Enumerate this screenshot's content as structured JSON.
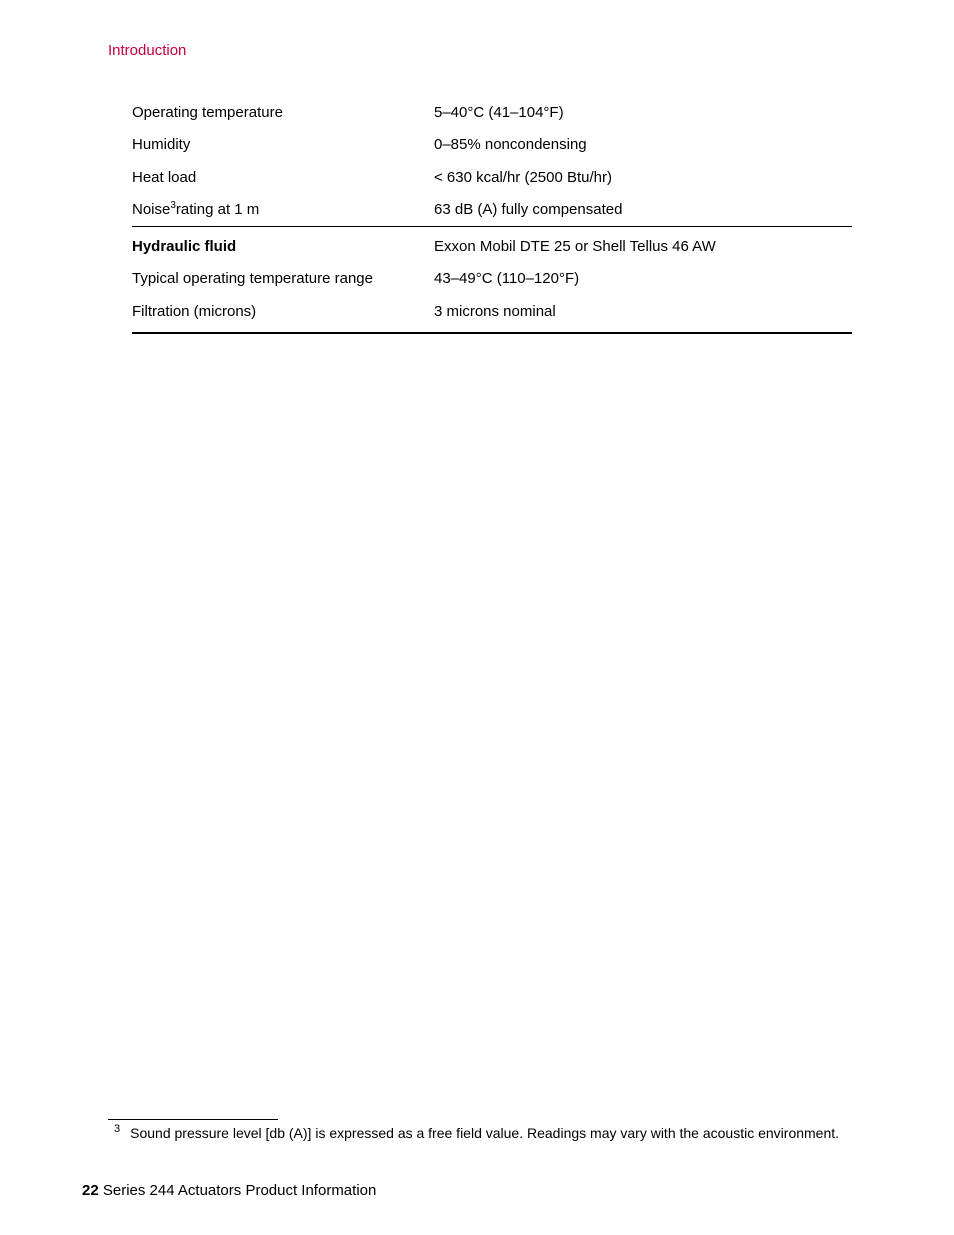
{
  "header": {
    "section": "Introduction"
  },
  "specs": {
    "rows": [
      {
        "label": "Operating temperature",
        "value": "5–40°C (41–104°F)",
        "bold": false,
        "dividerTop": false,
        "dividerBottom": false,
        "sup": ""
      },
      {
        "label": "Humidity",
        "value": "0–85% noncondensing",
        "bold": false,
        "dividerTop": false,
        "dividerBottom": false,
        "sup": ""
      },
      {
        "label": "Heat load",
        "value": "< 630 kcal/hr (2500 Btu/hr)",
        "bold": false,
        "dividerTop": false,
        "dividerBottom": false,
        "sup": ""
      },
      {
        "label": "Noise",
        "labelAfterSup": "rating at 1 m",
        "sup": "3",
        "value": "63 dB (A) fully compensated",
        "bold": false,
        "dividerTop": false,
        "dividerBottom": false
      },
      {
        "label": "Hydraulic fluid",
        "value": "Exxon Mobil DTE 25 or Shell Tellus 46 AW",
        "bold": true,
        "dividerTop": true,
        "dividerBottom": false,
        "sup": ""
      },
      {
        "label": "Typical operating temperature range",
        "value": "43–49°C (110–120°F)",
        "bold": false,
        "dividerTop": false,
        "dividerBottom": false,
        "sup": ""
      },
      {
        "label": "Filtration (microns)",
        "value": "3 microns nominal",
        "bold": false,
        "dividerTop": false,
        "dividerBottom": true,
        "sup": ""
      }
    ]
  },
  "footnote": {
    "num": "3",
    "text": "Sound pressure level [db (A)] is expressed as a free field value. Readings may vary with the acoustic environment."
  },
  "footer": {
    "pageNumber": "22",
    "title": "Series 244 Actuators Product Information"
  }
}
